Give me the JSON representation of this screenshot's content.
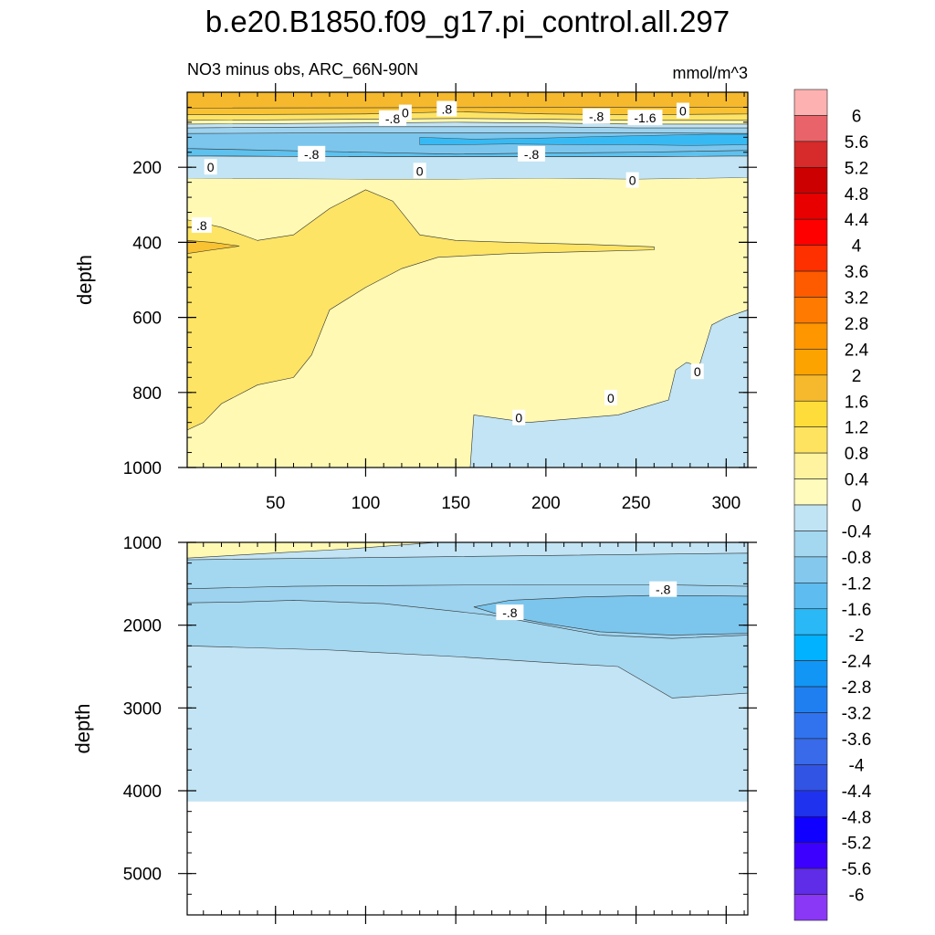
{
  "figure": {
    "title": "b.e20.B1850.f09_g17.pi_control.all.297",
    "subtitle_left": "NO3 minus obs, ARC_66N-90N",
    "subtitle_right": "mmol/m^3"
  },
  "chart_data": [
    {
      "type": "heatmap",
      "panel": "upper",
      "ylabel": "depth",
      "xlabel": "",
      "xlim": [
        1,
        312
      ],
      "ylim": [
        1000,
        0
      ],
      "x_ticks": [
        50,
        100,
        150,
        200,
        250,
        300
      ],
      "y_ticks": [
        200,
        400,
        600,
        800,
        1000
      ],
      "bands": [
        {
          "level": 0.8,
          "color": "#f8c232",
          "boundary": [
            [
              1,
              60
            ],
            [
              100,
              58
            ],
            [
              150,
              52
            ],
            [
              200,
              58
            ],
            [
              250,
              60
            ],
            [
              312,
              58
            ]
          ]
        },
        {
          "level": 0.4,
          "color": "#fde465",
          "boundary": [
            [
              1,
              75
            ],
            [
              100,
              72
            ],
            [
              150,
              70
            ],
            [
              200,
              72
            ],
            [
              250,
              75
            ],
            [
              312,
              75
            ]
          ]
        },
        {
          "level": 0.0,
          "color": "#fff9b3",
          "boundary": [
            [
              1,
              85
            ],
            [
              100,
              82
            ],
            [
              150,
              80
            ],
            [
              200,
              82
            ],
            [
              250,
              85
            ],
            [
              312,
              85
            ]
          ]
        },
        {
          "level": -0.4,
          "color": "#c2e4f4",
          "boundary": [
            [
              1,
              95
            ],
            [
              100,
              92
            ],
            [
              150,
              92
            ],
            [
              200,
              92
            ],
            [
              250,
              95
            ],
            [
              312,
              95
            ]
          ]
        },
        {
          "level": -0.8,
          "color": "#9dd3ef",
          "boundary": [
            [
              1,
              110
            ],
            [
              100,
              108
            ],
            [
              150,
              108
            ],
            [
              200,
              108
            ],
            [
              250,
              108
            ],
            [
              312,
              110
            ]
          ]
        },
        {
          "level": -1.2,
          "color": "#7cc6ed",
          "boundary": [
            [
              1,
              150
            ],
            [
              100,
              160
            ],
            [
              150,
              165
            ],
            [
              200,
              162
            ],
            [
              250,
              160
            ],
            [
              312,
              155
            ]
          ]
        },
        {
          "level": -1.6,
          "color": "#5ec1ee",
          "boundary": [
            [
              1,
              170
            ],
            [
              100,
              172
            ],
            [
              150,
              172
            ],
            [
              200,
              172
            ],
            [
              250,
              172
            ],
            [
              312,
              170
            ]
          ]
        }
      ],
      "regions": [
        {
          "level": 0.4,
          "color": "#fde465",
          "polygon": [
            [
              1,
              340
            ],
            [
              20,
              360
            ],
            [
              40,
              395
            ],
            [
              60,
              380
            ],
            [
              80,
              310
            ],
            [
              100,
              260
            ],
            [
              115,
              290
            ],
            [
              130,
              380
            ],
            [
              150,
              395
            ],
            [
              180,
              400
            ],
            [
              220,
              405
            ],
            [
              260,
              412
            ],
            [
              260,
              420
            ],
            [
              220,
              425
            ],
            [
              180,
              430
            ],
            [
              140,
              440
            ],
            [
              120,
              470
            ],
            [
              100,
              520
            ],
            [
              80,
              580
            ],
            [
              70,
              700
            ],
            [
              60,
              760
            ],
            [
              40,
              780
            ],
            [
              20,
              830
            ],
            [
              10,
              880
            ],
            [
              1,
              900
            ]
          ]
        },
        {
          "level": 0.8,
          "color": "#f8c232",
          "polygon": [
            [
              1,
              395
            ],
            [
              15,
              400
            ],
            [
              30,
              410
            ],
            [
              15,
              420
            ],
            [
              1,
              430
            ]
          ]
        },
        {
          "level": -0.4,
          "color": "#c2e4f4",
          "polygon": [
            [
              158,
              1000
            ],
            [
              160,
              860
            ],
            [
              190,
              880
            ],
            [
              215,
              870
            ],
            [
              240,
              860
            ],
            [
              268,
              820
            ],
            [
              272,
              740
            ],
            [
              278,
              720
            ],
            [
              285,
              730
            ],
            [
              292,
              620
            ],
            [
              300,
              600
            ],
            [
              312,
              580
            ],
            [
              312,
              1000
            ]
          ]
        }
      ],
      "labels": [
        {
          "x": 115,
          "y": 70,
          "text": "-.8"
        },
        {
          "x": 122,
          "y": 55,
          "text": "0"
        },
        {
          "x": 145,
          "y": 45,
          "text": ".8"
        },
        {
          "x": 228,
          "y": 65,
          "text": "-.8"
        },
        {
          "x": 255,
          "y": 68,
          "text": "-1.6"
        },
        {
          "x": 276,
          "y": 50,
          "text": "0"
        },
        {
          "x": 70,
          "y": 165,
          "text": "-.8"
        },
        {
          "x": 192,
          "y": 165,
          "text": "-.8"
        },
        {
          "x": 14,
          "y": 200,
          "text": "0"
        },
        {
          "x": 130,
          "y": 210,
          "text": "0"
        },
        {
          "x": 248,
          "y": 235,
          "text": "0"
        },
        {
          "x": 9,
          "y": 355,
          "text": ".8"
        },
        {
          "x": 236,
          "y": 815,
          "text": "0"
        },
        {
          "x": 284,
          "y": 745,
          "text": "0"
        },
        {
          "x": 185,
          "y": 868,
          "text": "0"
        }
      ]
    },
    {
      "type": "heatmap",
      "panel": "lower",
      "ylabel": "depth",
      "xlabel": "",
      "xlim": [
        1,
        312
      ],
      "ylim": [
        5500,
        1000
      ],
      "x_ticks": [],
      "y_ticks": [
        1000,
        2000,
        3000,
        4000,
        5000
      ],
      "data_bottom": 4130,
      "regions": [
        {
          "level": 0.0,
          "color": "#fff9b3",
          "polygon": [
            [
              1,
              1000
            ],
            [
              140,
              1000
            ],
            [
              90,
              1080
            ],
            [
              40,
              1140
            ],
            [
              1,
              1190
            ]
          ]
        },
        {
          "level": -0.8,
          "color": "#9dd3ef",
          "polygon": [
            [
              1,
              1560
            ],
            [
              60,
              1530
            ],
            [
              120,
              1520
            ],
            [
              200,
              1510
            ],
            [
              260,
              1510
            ],
            [
              312,
              1530
            ],
            [
              312,
              2120
            ],
            [
              270,
              2160
            ],
            [
              230,
              2120
            ],
            [
              200,
              2000
            ],
            [
              170,
              1880
            ],
            [
              110,
              1740
            ],
            [
              60,
              1700
            ],
            [
              30,
              1720
            ],
            [
              1,
              1730
            ]
          ]
        },
        {
          "level": -1.2,
          "color": "#7cc6ed",
          "polygon": [
            [
              160,
              1780
            ],
            [
              180,
              1700
            ],
            [
              220,
              1660
            ],
            [
              260,
              1640
            ],
            [
              312,
              1650
            ],
            [
              312,
              2100
            ],
            [
              270,
              2120
            ],
            [
              230,
              2080
            ],
            [
              200,
              1980
            ],
            [
              175,
              1880
            ]
          ]
        }
      ],
      "outline": [
        [
          1,
          2250
        ],
        [
          80,
          2300
        ],
        [
          150,
          2380
        ],
        [
          200,
          2450
        ],
        [
          240,
          2500
        ],
        [
          270,
          2880
        ],
        [
          312,
          2820
        ]
      ],
      "labels": [
        {
          "x": 265,
          "y": 1570,
          "text": "-.8"
        },
        {
          "x": 180,
          "y": 1850,
          "text": "-.8"
        }
      ]
    }
  ],
  "colorbar": {
    "levels": [
      "6",
      "5.6",
      "5.2",
      "4.8",
      "4.4",
      "4",
      "3.6",
      "3.2",
      "2.8",
      "2.4",
      "2",
      "1.6",
      "1.2",
      "0.8",
      "0.4",
      "0",
      "-0.4",
      "-0.8",
      "-1.2",
      "-1.6",
      "-2",
      "-2.4",
      "-2.8",
      "-3.2",
      "-3.6",
      "-4",
      "-4.4",
      "-4.8",
      "-5.2",
      "-5.6",
      "-6"
    ],
    "colors": [
      "#fdb1b0",
      "#e9636a",
      "#d72a2a",
      "#cc0000",
      "#e80000",
      "#ff0000",
      "#ff3000",
      "#fe5a00",
      "#ff7a00",
      "#fe9600",
      "#fca300",
      "#f6b92d",
      "#fedd3a",
      "#fee360",
      "#fff3a0",
      "#fffbbc",
      "#c1e4f4",
      "#a4d7f0",
      "#84c8ed",
      "#5ebcf0",
      "#2bb8f6",
      "#00b2ff",
      "#1296f6",
      "#1f7ff1",
      "#3173ee",
      "#386ae9",
      "#3254e4",
      "#1f33ee",
      "#1000ff",
      "#3c00ff",
      "#5f2ce7",
      "#8a37f6"
    ]
  }
}
